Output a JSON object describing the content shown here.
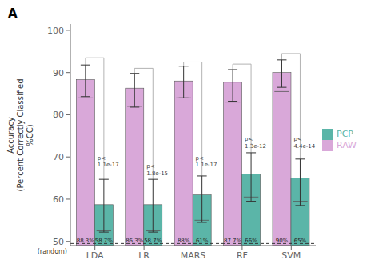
{
  "chart_data": {
    "type": "bar",
    "panel_label": "A",
    "categories": [
      "LDA",
      "LR",
      "MARS",
      "RF",
      "SVM"
    ],
    "ylabel": "Accuracy\n(Percent Correctly Classified\n%CC)",
    "ylim": [
      49.0,
      101.5
    ],
    "yticks": [
      50,
      60,
      70,
      80,
      90,
      100
    ],
    "grid": false,
    "legend": "right",
    "data_labels": true,
    "series": [
      {
        "name": "RAW",
        "color": "#D9A8D9",
        "values": [
          88.3,
          86.3,
          88.0,
          87.7,
          90.0
        ],
        "value_labels": [
          "88.3%",
          "86.3%",
          "88%",
          "87.7%",
          "90%"
        ],
        "errors_low": [
          4.0,
          4.5,
          4.0,
          4.5,
          3.5
        ],
        "errors_high": [
          3.5,
          3.5,
          3.5,
          3.0,
          3.0
        ],
        "medians": [
          84.0,
          82.0,
          84.0,
          83.0,
          85.5
        ]
      },
      {
        "name": "PCP",
        "color": "#5BB5A8",
        "values": [
          58.7,
          58.7,
          61.0,
          66.0,
          65.0
        ],
        "value_labels": [
          "58.7%",
          "58.7%",
          "61%",
          "66%",
          "65%"
        ],
        "errors_low": [
          6.5,
          6.5,
          6.5,
          6.5,
          6.5
        ],
        "errors_high": [
          6.0,
          6.0,
          4.5,
          5.0,
          4.5
        ],
        "medians": [
          52.5,
          52.5,
          55.0,
          60.5,
          59.5
        ]
      }
    ],
    "reference_line": {
      "y": 49.5,
      "label": "(random)"
    },
    "brackets": [
      93.5,
      91.0,
      92.5,
      92.0,
      94.5
    ],
    "annotations": [
      {
        "text": "p<\n1.1e-17",
        "y": 67.5
      },
      {
        "text": "p<\n1.8e-15",
        "y": 65.5
      },
      {
        "text": "p<\n1.1e-17",
        "y": 67.5
      },
      {
        "text": "p<\n1.3e-12",
        "y": 72.0
      },
      {
        "text": "p<\n4.4e-14",
        "y": 72.0
      }
    ]
  }
}
